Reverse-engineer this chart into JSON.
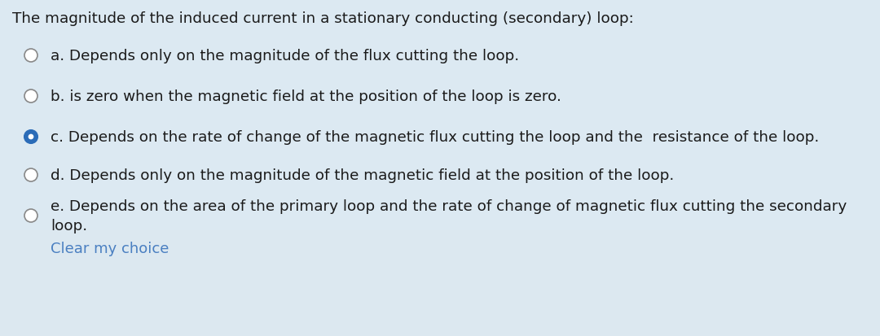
{
  "title": "The magnitude of the induced current in a stationary conducting (secondary) loop:",
  "options": [
    {
      "label": "a",
      "text": "Depends only on the magnitude of the flux cutting the loop.",
      "selected": false
    },
    {
      "label": "b",
      "text": "is zero when the magnetic field at the position of the loop is zero.",
      "selected": false
    },
    {
      "label": "c",
      "text": "Depends on the rate of change of the magnetic flux cutting the loop and the  resistance of the loop.",
      "selected": true
    },
    {
      "label": "d",
      "text": "Depends only on the magnitude of the magnetic field at the position of the loop.",
      "selected": false
    },
    {
      "label": "e",
      "text": "Depends on the area of the primary loop and the rate of change of magnetic flux cutting the secondary\nloop.",
      "selected": false
    }
  ],
  "clear_choice_text": "Clear my choice",
  "clear_choice_color": "#4a7fc1",
  "bg_top_color": "#dce8f0",
  "bg_bottom_color": "#e8f0f8",
  "text_color": "#1a1a1a",
  "selected_color": "#2b6cb8",
  "unselected_stroke": "#888888",
  "title_fontsize": 13.2,
  "option_fontsize": 13.2,
  "clear_fontsize": 13.0
}
